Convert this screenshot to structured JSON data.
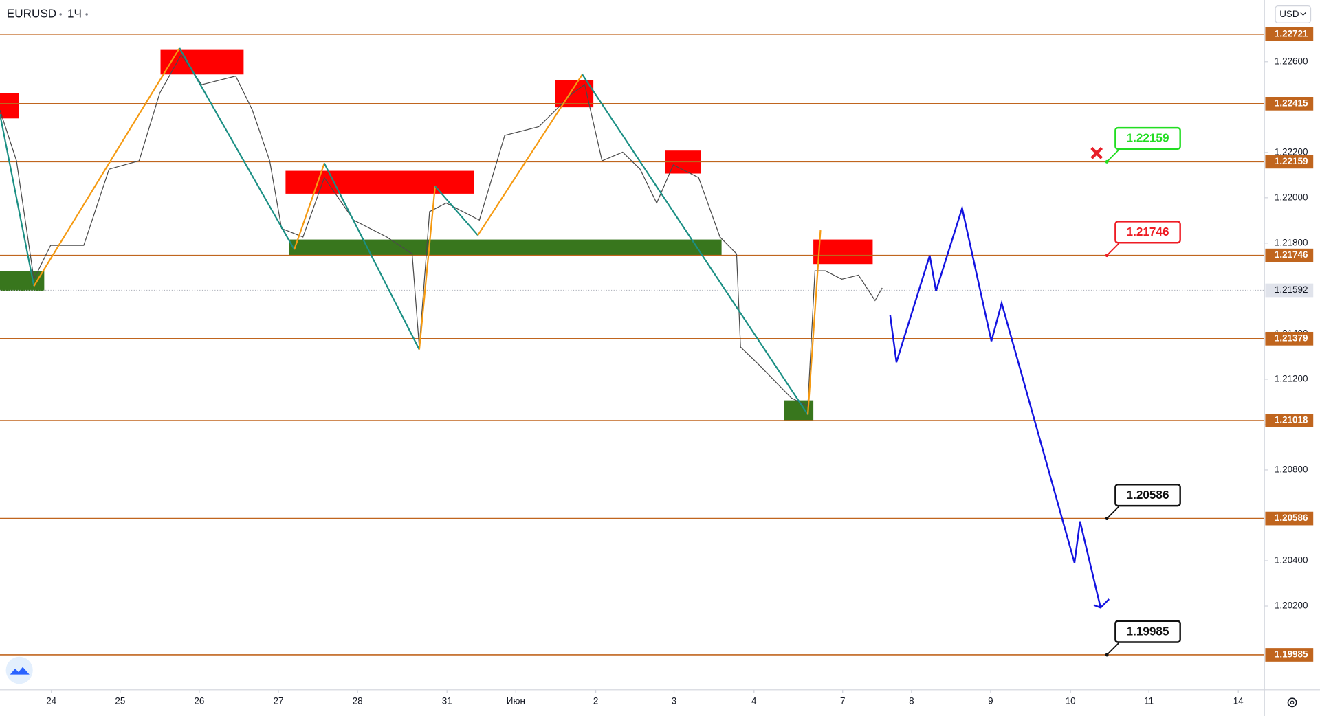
{
  "chart_data": {
    "type": "price",
    "symbol": "EURUSD",
    "interval": "1Ч",
    "currency": "USD",
    "xlim": [
      -0.649,
      15.33
    ],
    "ylim": [
      1.19831,
      1.22872
    ],
    "xticks": [
      {
        "value": 0,
        "label": "24"
      },
      {
        "value": 0.87,
        "label": "25"
      },
      {
        "value": 1.87,
        "label": "26"
      },
      {
        "value": 2.87,
        "label": "27"
      },
      {
        "value": 3.87,
        "label": "28"
      },
      {
        "value": 5,
        "label": "31"
      },
      {
        "value": 5.87,
        "label": "Июн"
      },
      {
        "value": 6.88,
        "label": "2"
      },
      {
        "value": 7.87,
        "label": "3"
      },
      {
        "value": 8.88,
        "label": "4"
      },
      {
        "value": 10,
        "label": "7"
      },
      {
        "value": 10.87,
        "label": "8"
      },
      {
        "value": 11.87,
        "label": "9"
      },
      {
        "value": 12.88,
        "label": "10"
      },
      {
        "value": 13.87,
        "label": "11"
      },
      {
        "value": 15,
        "label": "14"
      }
    ],
    "yticks": [
      {
        "value": 1.226,
        "label": "1.22600"
      },
      {
        "value": 1.222,
        "label": "1.22200"
      },
      {
        "value": 1.22,
        "label": "1.22000"
      },
      {
        "value": 1.218,
        "label": "1.21800"
      },
      {
        "value": 1.214,
        "label": "1.21400"
      },
      {
        "value": 1.212,
        "label": "1.21200"
      },
      {
        "value": 1.21,
        "label": "1.21000"
      },
      {
        "value": 1.208,
        "label": "1.20800"
      },
      {
        "value": 1.204,
        "label": "1.20400"
      },
      {
        "value": 1.202,
        "label": "1.20200"
      }
    ],
    "levels": [
      1.22721,
      1.22415,
      1.22159,
      1.21746,
      1.21379,
      1.21018,
      1.20586,
      1.19985
    ],
    "level_color": "#c0651e",
    "last_price": 1.21592,
    "price": {
      "color": "#4a4a4a",
      "x": [
        -0.65,
        -0.44,
        -0.22,
        -0.01,
        0.41,
        0.73,
        1.11,
        1.37,
        1.64,
        1.9,
        2.33,
        2.54,
        2.76,
        2.91,
        3.18,
        3.45,
        3.82,
        4.24,
        4.56,
        4.65,
        4.78,
        4.99,
        5.41,
        5.73,
        6.16,
        6.59,
        6.74,
        6.96,
        7.22,
        7.44,
        7.65,
        7.86,
        8.18,
        8.45,
        8.66,
        8.71,
        8.93,
        9.35,
        9.56,
        9.65,
        9.78,
        9.99,
        10.2,
        10.41,
        10.5
      ],
      "values": [
        1.22387,
        1.22163,
        1.21641,
        1.2179,
        1.2179,
        1.22126,
        1.22163,
        1.22462,
        1.2263,
        1.22499,
        1.22537,
        1.22387,
        1.22163,
        1.21865,
        1.21827,
        1.22089,
        1.21902,
        1.21827,
        1.21753,
        1.21342,
        1.21939,
        1.21977,
        1.21902,
        1.22275,
        1.22313,
        1.22462,
        1.22499,
        1.22163,
        1.22201,
        1.22126,
        1.21977,
        1.22145,
        1.22089,
        1.21827,
        1.21753,
        1.21342,
        1.21268,
        1.21118,
        1.21081,
        1.21678,
        1.21678,
        1.21641,
        1.21659,
        1.21547,
        1.21603
      ]
    },
    "swings": {
      "up_color": "#f59a12",
      "down_color": "#1b8f84",
      "x": [
        -0.65,
        -0.22,
        1.62,
        3.07,
        3.45,
        4.65,
        4.85,
        5.39,
        6.71,
        9.56,
        9.72
      ],
      "values": [
        1.22369,
        1.21611,
        1.2266,
        1.21772,
        1.22152,
        1.21331,
        1.22051,
        1.21835,
        1.22544,
        1.21044,
        1.21857
      ]
    },
    "forecast": {
      "color": "#1414e0",
      "x": [
        10.6,
        10.68,
        11.1,
        11.18,
        11.51,
        11.88,
        12.01,
        12.93,
        13.0,
        13.26
      ],
      "values": [
        1.21484,
        1.21275,
        1.21745,
        1.21589,
        1.21954,
        1.21368,
        1.21536,
        1.20391,
        1.20573,
        1.20193
      ]
    },
    "zones": [
      {
        "x0": -0.65,
        "x1": -0.41,
        "top": 1.22462,
        "bottom": 1.2235,
        "color": "#ff0000"
      },
      {
        "x0": 1.38,
        "x1": 2.43,
        "top": 1.22652,
        "bottom": 1.22544,
        "color": "#ff0000"
      },
      {
        "x0": 2.96,
        "x1": 5.34,
        "top": 1.22119,
        "bottom": 1.22018,
        "color": "#ff0000"
      },
      {
        "x0": 6.37,
        "x1": 6.85,
        "top": 1.22518,
        "bottom": 1.22399,
        "color": "#ff0000"
      },
      {
        "x0": 7.76,
        "x1": 8.21,
        "top": 1.22208,
        "bottom": 1.22107,
        "color": "#ff0000"
      },
      {
        "x0": 9.63,
        "x1": 10.38,
        "top": 1.21816,
        "bottom": 1.21708,
        "color": "#ff0000"
      },
      {
        "x0": -0.65,
        "x1": -0.09,
        "top": 1.21678,
        "bottom": 1.21589,
        "color": "#38761d"
      },
      {
        "x0": 3.0,
        "x1": 8.47,
        "top": 1.21816,
        "bottom": 1.21745,
        "color": "#38761d"
      },
      {
        "x0": 9.26,
        "x1": 9.63,
        "top": 1.21107,
        "bottom": 1.21018,
        "color": "#38761d"
      }
    ],
    "callouts": [
      {
        "x": 13.34,
        "value": 1.22159,
        "color": "#22dd22"
      },
      {
        "x": 13.34,
        "value": 1.21746,
        "color": "#ee1c24"
      },
      {
        "x": 13.34,
        "value": 1.20586,
        "color": "#111111"
      },
      {
        "x": 13.34,
        "value": 1.19985,
        "color": "#111111"
      }
    ],
    "marker": {
      "x": 13.21,
      "value": 1.22197,
      "color": "#e8202a"
    }
  }
}
